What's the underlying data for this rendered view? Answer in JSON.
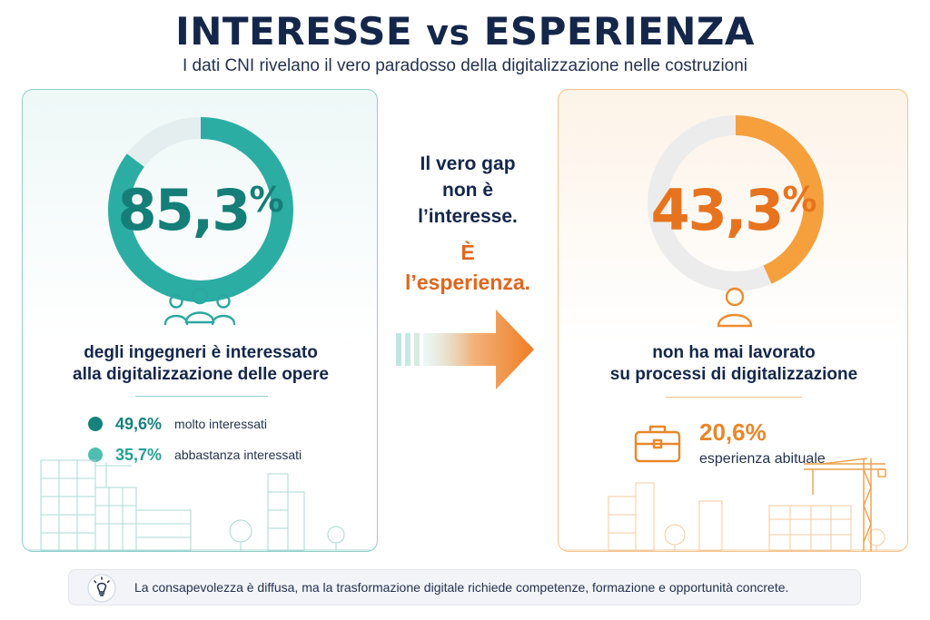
{
  "header": {
    "title_part1": "INTERESSE",
    "title_vs": "vs",
    "title_part2": "ESPERIENZA",
    "subtitle": "I dati CNI rivelano il vero paradosso della digitalizzazione nelle costruzioni"
  },
  "left_card": {
    "percentage_number": "85,3",
    "percentage_sign": "%",
    "percentage_value": 85.3,
    "description_line1": "degli ingegneri è interessato",
    "description_line2": "alla digitalizzazione delle opere",
    "breakdown": [
      {
        "value": "49,6%",
        "label": "molto interessati",
        "color": "#17817b"
      },
      {
        "value": "35,7%",
        "label": "abbastanza interessati",
        "color": "#4fbdb2"
      }
    ],
    "accent_color": "#2bada4",
    "icon": "people-group-icon"
  },
  "center": {
    "line1": "Il vero gap",
    "line2": "non è",
    "line3": "l’interesse.",
    "emph1": "È",
    "emph2": "l’esperienza.",
    "arrow_icon": "arrow-right-icon"
  },
  "right_card": {
    "percentage_number": "43,3",
    "percentage_sign": "%",
    "percentage_value": 43.3,
    "description_line1": "non ha mai lavorato",
    "description_line2": "su processi di digitalizzazione",
    "experience_value": "20,6%",
    "experience_label": "esperienza abituale",
    "accent_color": "#f5a03c",
    "icon": "person-icon",
    "experience_icon": "briefcase-icon"
  },
  "footer": {
    "icon": "lightbulb-icon",
    "text": "La consapevolezza è diffusa, ma la trasformazione digitale richiede competenze, formazione e opportunità concrete."
  }
}
